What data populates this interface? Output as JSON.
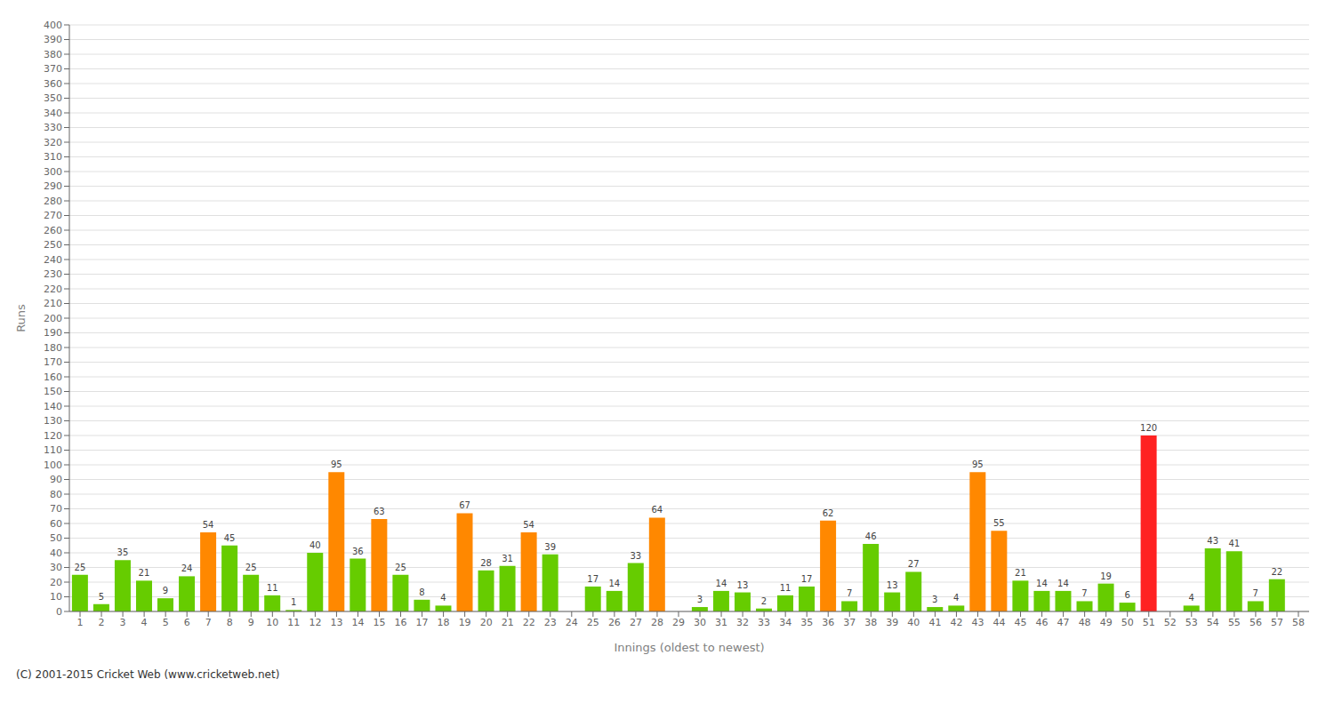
{
  "chart_data": {
    "type": "bar",
    "categories": [
      "1",
      "2",
      "3",
      "4",
      "5",
      "6",
      "7",
      "8",
      "9",
      "10",
      "11",
      "12",
      "13",
      "14",
      "15",
      "16",
      "17",
      "18",
      "19",
      "20",
      "21",
      "22",
      "23",
      "24",
      "25",
      "26",
      "27",
      "28",
      "29",
      "30",
      "31",
      "32",
      "33",
      "34",
      "35",
      "36",
      "37",
      "38",
      "39",
      "40",
      "41",
      "42",
      "43",
      "44",
      "45",
      "46",
      "47",
      "48",
      "49",
      "50",
      "51",
      "52",
      "53",
      "54",
      "55",
      "56",
      "57",
      "58"
    ],
    "values": [
      25,
      5,
      35,
      21,
      9,
      24,
      54,
      45,
      25,
      11,
      1,
      40,
      95,
      36,
      63,
      25,
      8,
      4,
      67,
      28,
      31,
      54,
      39,
      0,
      17,
      14,
      33,
      64,
      0,
      3,
      14,
      13,
      2,
      11,
      17,
      62,
      7,
      46,
      13,
      27,
      3,
      4,
      95,
      55,
      21,
      14,
      14,
      7,
      19,
      6,
      120,
      0,
      4,
      43,
      41,
      7,
      22,
      0
    ],
    "colors": [
      "#66cc00",
      "#66cc00",
      "#66cc00",
      "#66cc00",
      "#66cc00",
      "#66cc00",
      "#ff8800",
      "#66cc00",
      "#66cc00",
      "#66cc00",
      "#66cc00",
      "#66cc00",
      "#ff8800",
      "#66cc00",
      "#ff8800",
      "#66cc00",
      "#66cc00",
      "#66cc00",
      "#ff8800",
      "#66cc00",
      "#66cc00",
      "#ff8800",
      "#66cc00",
      "#66cc00",
      "#66cc00",
      "#66cc00",
      "#66cc00",
      "#ff8800",
      "#66cc00",
      "#66cc00",
      "#66cc00",
      "#66cc00",
      "#66cc00",
      "#66cc00",
      "#66cc00",
      "#ff8800",
      "#66cc00",
      "#66cc00",
      "#66cc00",
      "#66cc00",
      "#66cc00",
      "#66cc00",
      "#ff8800",
      "#ff8800",
      "#66cc00",
      "#66cc00",
      "#66cc00",
      "#66cc00",
      "#66cc00",
      "#66cc00",
      "#ff2222",
      "#66cc00",
      "#66cc00",
      "#66cc00",
      "#66cc00",
      "#66cc00",
      "#66cc00",
      "#66cc00"
    ],
    "xlabel": "Innings (oldest to newest)",
    "ylabel": "Runs",
    "ylim": [
      0,
      400
    ],
    "yticks": [
      0,
      10,
      20,
      30,
      40,
      50,
      60,
      70,
      80,
      90,
      100,
      110,
      120,
      130,
      140,
      150,
      160,
      170,
      180,
      190,
      200,
      210,
      220,
      230,
      240,
      250,
      260,
      270,
      280,
      290,
      300,
      310,
      320,
      330,
      340,
      350,
      360,
      370,
      380,
      390,
      400
    ],
    "grid": true,
    "data_labels": true,
    "annotations": [
      "(C) 2001-2015 Cricket Web (www.cricketweb.net)"
    ]
  }
}
